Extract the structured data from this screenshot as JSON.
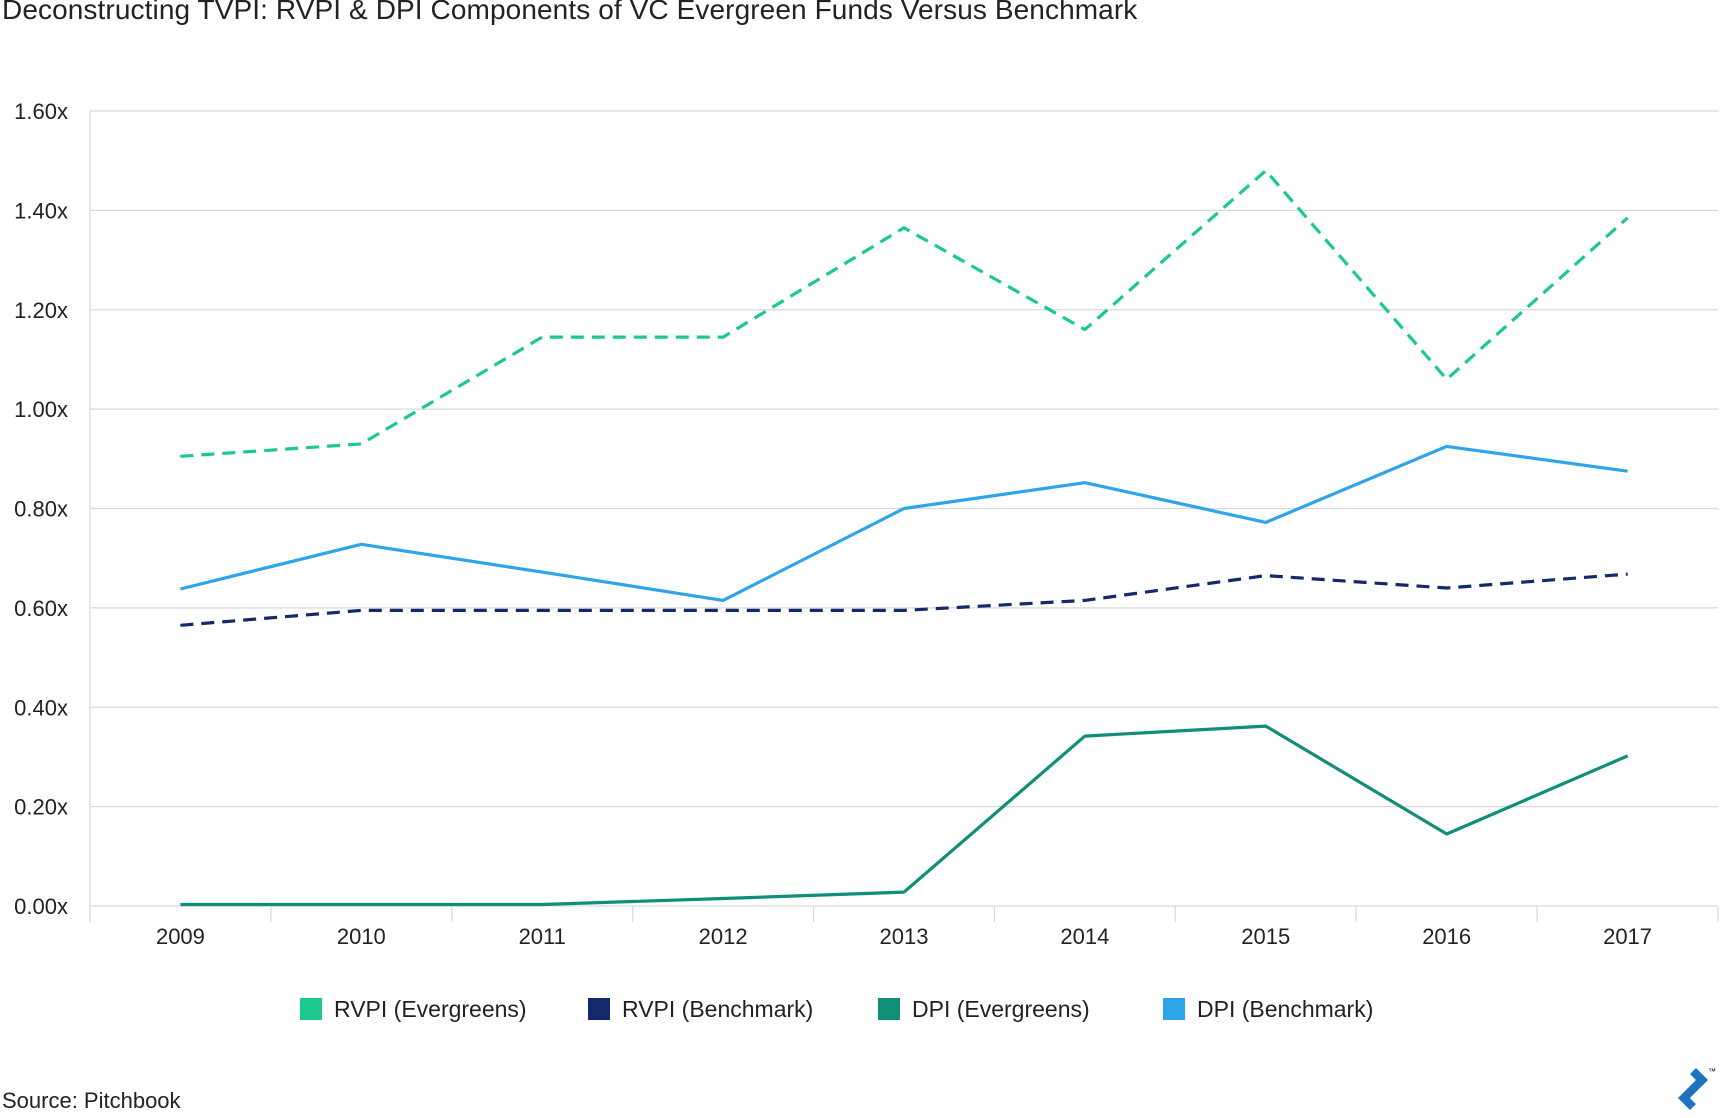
{
  "source": "Source: Pitchbook",
  "chart_data": {
    "type": "line",
    "title": "Deconstructing TVPI: RVPI & DPI Components of VC Evergreen Funds Versus Benchmark",
    "xlabel": "",
    "ylabel": "",
    "ylim": [
      0,
      1.6
    ],
    "y_ticks": [
      "0.00x",
      "0.20x",
      "0.40x",
      "0.60x",
      "0.80x",
      "1.00x",
      "1.20x",
      "1.40x",
      "1.60x"
    ],
    "y_tick_values": [
      0,
      0.2,
      0.4,
      0.6,
      0.8,
      1.0,
      1.2,
      1.4,
      1.6
    ],
    "categories": [
      "2009",
      "2010",
      "2011",
      "2012",
      "2013",
      "2014",
      "2015",
      "2016",
      "2017"
    ],
    "grid": true,
    "legend_position": "bottom",
    "series": [
      {
        "name": "RVPI (Evergreens)",
        "color": "#1bc98e",
        "style": "dashed",
        "values": [
          0.905,
          0.93,
          1.145,
          1.145,
          1.365,
          1.16,
          1.48,
          1.06,
          1.385
        ]
      },
      {
        "name": "RVPI (Benchmark)",
        "color": "#13296b",
        "style": "dashed",
        "values": [
          0.565,
          0.595,
          0.595,
          0.595,
          0.595,
          0.615,
          0.665,
          0.64,
          0.668
        ]
      },
      {
        "name": "DPI (Evergreens)",
        "color": "#0f8f78",
        "style": "solid",
        "values": [
          0.003,
          0.003,
          0.003,
          0.015,
          0.028,
          0.342,
          0.362,
          0.145,
          0.302
        ]
      },
      {
        "name": "DPI (Benchmark)",
        "color": "#2ea5e8",
        "style": "solid",
        "values": [
          0.638,
          0.728,
          0.672,
          0.615,
          0.8,
          0.852,
          0.772,
          0.925,
          0.875
        ]
      }
    ]
  },
  "logo": {
    "name": "toptal-logo",
    "color": "#1e73be",
    "trademark": "™"
  }
}
